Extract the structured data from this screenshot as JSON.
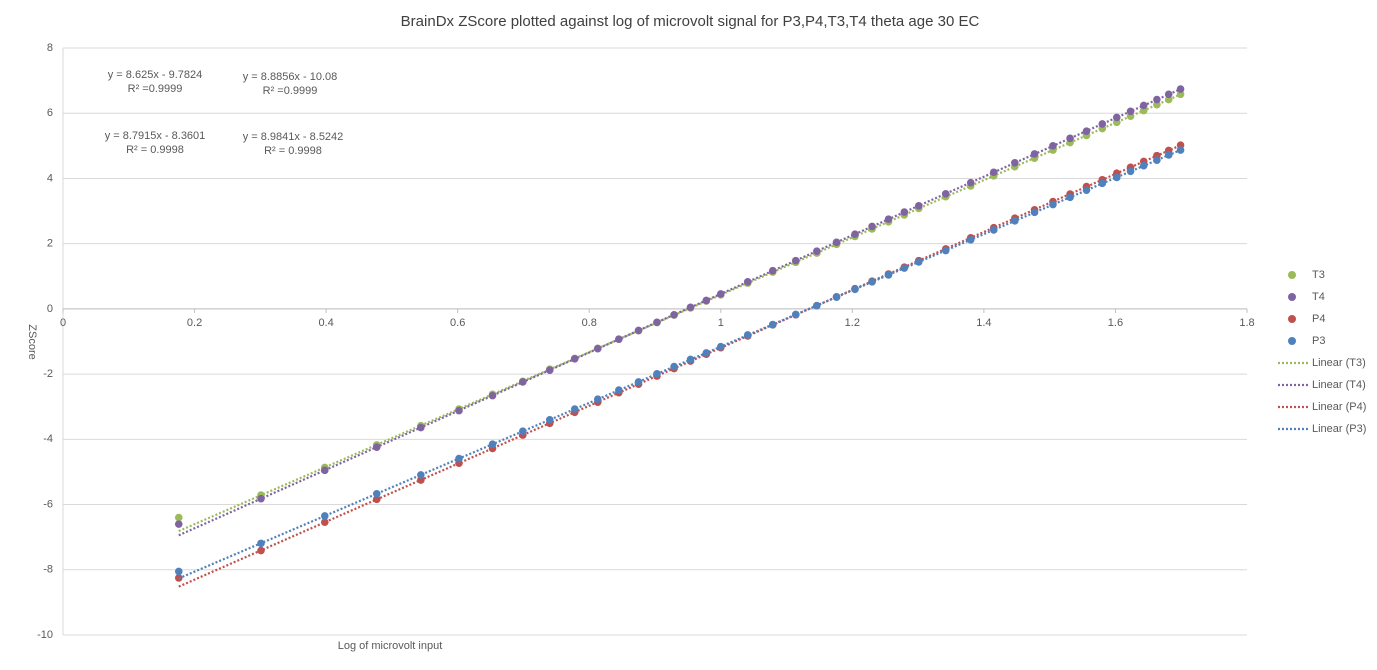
{
  "chart_data": {
    "type": "scatter",
    "title": "BrainDx ZScore plotted against log of microvolt signal for P3,P4,T3,T4 theta age 30 EC",
    "x_label": "Log of microvolt input",
    "y_label": "ZScore",
    "xlim": [
      0,
      1.8
    ],
    "xticks": [
      0,
      0.2,
      0.4,
      0.6,
      0.8,
      1,
      1.2,
      1.4,
      1.6,
      1.8
    ],
    "ylim": [
      -10,
      8
    ],
    "yticks": [
      -10,
      -8,
      -6,
      -4,
      -2,
      0,
      2,
      4,
      6,
      8
    ],
    "grid": true,
    "legend": "right",
    "x": [
      0.176,
      0.301,
      0.398,
      0.477,
      0.544,
      0.602,
      0.653,
      0.699,
      0.74,
      0.778,
      0.813,
      0.845,
      0.875,
      0.903,
      0.929,
      0.954,
      0.978,
      1.0,
      1.041,
      1.079,
      1.114,
      1.146,
      1.176,
      1.204,
      1.23,
      1.255,
      1.279,
      1.301,
      1.342,
      1.38,
      1.415,
      1.447,
      1.477,
      1.505,
      1.531,
      1.556,
      1.58,
      1.602,
      1.623,
      1.643,
      1.663,
      1.681,
      1.699
    ],
    "series": [
      {
        "name": "T3",
        "color": "#9bbb59",
        "values": [
          -6.4,
          -5.71,
          -4.86,
          -4.17,
          -3.58,
          -3.07,
          -2.62,
          -2.22,
          -1.85,
          -1.52,
          -1.21,
          -0.93,
          -0.67,
          -0.42,
          -0.19,
          0.03,
          0.24,
          0.43,
          0.79,
          1.13,
          1.43,
          1.71,
          1.98,
          2.22,
          2.45,
          2.67,
          2.88,
          3.08,
          3.44,
          3.77,
          4.08,
          4.36,
          4.62,
          4.87,
          5.1,
          5.32,
          5.53,
          5.72,
          5.91,
          6.08,
          6.26,
          6.42,
          6.58
        ],
        "trendline": {
          "name": "Linear (T3)",
          "equation": "y = 8.7915x - 8.3601",
          "r_squared": "R² = 0.9998",
          "slope": 8.7915,
          "intercept": -8.3601
        }
      },
      {
        "name": "T4",
        "color": "#8064a2",
        "values": [
          -6.6,
          -5.82,
          -4.95,
          -4.24,
          -3.64,
          -3.12,
          -2.66,
          -2.24,
          -1.88,
          -1.53,
          -1.22,
          -0.93,
          -0.66,
          -0.41,
          -0.18,
          0.05,
          0.26,
          0.46,
          0.83,
          1.17,
          1.48,
          1.77,
          2.04,
          2.29,
          2.53,
          2.75,
          2.97,
          3.16,
          3.53,
          3.87,
          4.19,
          4.48,
          4.75,
          5.0,
          5.23,
          5.45,
          5.67,
          5.87,
          6.06,
          6.24,
          6.42,
          6.58,
          6.74
        ],
        "trendline": {
          "name": "Linear (T4)",
          "equation": "y = 8.9841x - 8.5242",
          "r_squared": "R² = 0.9998",
          "slope": 8.9841,
          "intercept": -8.5242
        }
      },
      {
        "name": "P4",
        "color": "#c0504d",
        "values": [
          -8.25,
          -7.41,
          -6.54,
          -5.84,
          -5.25,
          -4.73,
          -4.28,
          -3.87,
          -3.51,
          -3.17,
          -2.86,
          -2.57,
          -2.31,
          -2.06,
          -1.83,
          -1.6,
          -1.39,
          -1.19,
          -0.83,
          -0.49,
          -0.18,
          0.1,
          0.37,
          0.62,
          0.85,
          1.07,
          1.28,
          1.48,
          1.84,
          2.18,
          2.49,
          2.78,
          3.04,
          3.29,
          3.52,
          3.75,
          3.96,
          4.16,
          4.34,
          4.52,
          4.7,
          4.86,
          5.02
        ],
        "trendline": {
          "name": "Linear (P4)",
          "equation": "y = 8.8856x - 10.08",
          "r_squared": "R² =0.9999",
          "slope": 8.8856,
          "intercept": -10.08
        }
      },
      {
        "name": "P3",
        "color": "#4f81bd",
        "values": [
          -8.05,
          -7.19,
          -6.35,
          -5.67,
          -5.09,
          -4.59,
          -4.15,
          -3.75,
          -3.4,
          -3.07,
          -2.77,
          -2.49,
          -2.24,
          -1.99,
          -1.77,
          -1.55,
          -1.35,
          -1.16,
          -0.8,
          -0.48,
          -0.17,
          0.1,
          0.36,
          0.6,
          0.83,
          1.04,
          1.25,
          1.44,
          1.79,
          2.12,
          2.42,
          2.7,
          2.96,
          3.2,
          3.42,
          3.64,
          3.85,
          4.03,
          4.22,
          4.39,
          4.56,
          4.72,
          4.87
        ],
        "trendline": {
          "name": "Linear (P3)",
          "equation": "y = 8.625x - 9.7824",
          "r_squared": "R² =0.9999",
          "slope": 8.625,
          "intercept": -9.7824
        }
      }
    ]
  }
}
